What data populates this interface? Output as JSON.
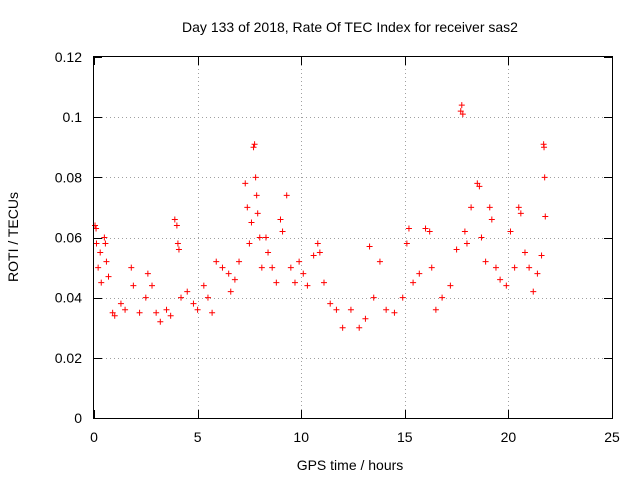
{
  "chart_data": {
    "type": "scatter",
    "title": "Day 133 of 2018, Rate Of TEC Index for receiver sas2",
    "xlabel": "GPS time / hours",
    "ylabel": "ROTI / TECUs",
    "xlim": [
      0,
      25
    ],
    "ylim": [
      0,
      0.12
    ],
    "xticks": [
      0,
      5,
      10,
      15,
      20,
      25
    ],
    "xtick_labels": [
      "0",
      "5",
      "10",
      "15",
      "20",
      "25"
    ],
    "yticks": [
      0,
      0.02,
      0.04,
      0.06,
      0.08,
      0.1,
      0.12
    ],
    "ytick_labels": [
      "0",
      "0.02",
      "0.04",
      "0.06",
      "0.08",
      "0.1",
      "0.12"
    ],
    "grid": true,
    "marker": "+",
    "color": "#ff0000",
    "series": [
      {
        "points": [
          [
            0.05,
            0.064
          ],
          [
            0.1,
            0.063
          ],
          [
            0.12,
            0.058
          ],
          [
            0.2,
            0.05
          ],
          [
            0.3,
            0.055
          ],
          [
            0.35,
            0.045
          ],
          [
            0.5,
            0.06
          ],
          [
            0.55,
            0.058
          ],
          [
            0.6,
            0.052
          ],
          [
            0.7,
            0.047
          ],
          [
            0.9,
            0.035
          ],
          [
            1.0,
            0.034
          ],
          [
            1.3,
            0.038
          ],
          [
            1.5,
            0.036
          ],
          [
            1.8,
            0.05
          ],
          [
            1.9,
            0.044
          ],
          [
            2.2,
            0.035
          ],
          [
            2.5,
            0.04
          ],
          [
            2.6,
            0.048
          ],
          [
            2.8,
            0.044
          ],
          [
            3.0,
            0.035
          ],
          [
            3.2,
            0.032
          ],
          [
            3.5,
            0.036
          ],
          [
            3.7,
            0.034
          ],
          [
            3.9,
            0.066
          ],
          [
            4.0,
            0.064
          ],
          [
            4.05,
            0.058
          ],
          [
            4.1,
            0.056
          ],
          [
            4.2,
            0.04
          ],
          [
            4.5,
            0.042
          ],
          [
            4.8,
            0.038
          ],
          [
            5.0,
            0.036
          ],
          [
            5.3,
            0.044
          ],
          [
            5.5,
            0.04
          ],
          [
            5.7,
            0.035
          ],
          [
            5.9,
            0.052
          ],
          [
            6.2,
            0.05
          ],
          [
            6.5,
            0.048
          ],
          [
            6.6,
            0.042
          ],
          [
            6.8,
            0.046
          ],
          [
            7.0,
            0.052
          ],
          [
            7.3,
            0.078
          ],
          [
            7.4,
            0.07
          ],
          [
            7.5,
            0.058
          ],
          [
            7.6,
            0.065
          ],
          [
            7.7,
            0.09
          ],
          [
            7.75,
            0.091
          ],
          [
            7.8,
            0.08
          ],
          [
            7.85,
            0.074
          ],
          [
            7.9,
            0.068
          ],
          [
            8.0,
            0.06
          ],
          [
            8.1,
            0.05
          ],
          [
            8.3,
            0.06
          ],
          [
            8.4,
            0.055
          ],
          [
            8.6,
            0.05
          ],
          [
            8.8,
            0.045
          ],
          [
            9.0,
            0.066
          ],
          [
            9.1,
            0.062
          ],
          [
            9.3,
            0.074
          ],
          [
            9.5,
            0.05
          ],
          [
            9.7,
            0.045
          ],
          [
            9.9,
            0.052
          ],
          [
            10.1,
            0.048
          ],
          [
            10.3,
            0.044
          ],
          [
            10.6,
            0.054
          ],
          [
            10.8,
            0.058
          ],
          [
            10.9,
            0.055
          ],
          [
            11.1,
            0.045
          ],
          [
            11.4,
            0.038
          ],
          [
            11.7,
            0.036
          ],
          [
            12.0,
            0.03
          ],
          [
            12.4,
            0.036
          ],
          [
            12.8,
            0.03
          ],
          [
            13.1,
            0.033
          ],
          [
            13.3,
            0.057
          ],
          [
            13.5,
            0.04
          ],
          [
            13.8,
            0.052
          ],
          [
            14.1,
            0.036
          ],
          [
            14.5,
            0.035
          ],
          [
            14.9,
            0.04
          ],
          [
            15.1,
            0.058
          ],
          [
            15.2,
            0.063
          ],
          [
            15.4,
            0.045
          ],
          [
            15.7,
            0.048
          ],
          [
            16.0,
            0.063
          ],
          [
            16.2,
            0.062
          ],
          [
            16.3,
            0.05
          ],
          [
            16.5,
            0.036
          ],
          [
            16.8,
            0.04
          ],
          [
            17.2,
            0.044
          ],
          [
            17.5,
            0.056
          ],
          [
            17.7,
            0.102
          ],
          [
            17.75,
            0.104
          ],
          [
            17.8,
            0.101
          ],
          [
            17.9,
            0.062
          ],
          [
            18.0,
            0.058
          ],
          [
            18.2,
            0.07
          ],
          [
            18.5,
            0.078
          ],
          [
            18.6,
            0.077
          ],
          [
            18.7,
            0.06
          ],
          [
            18.9,
            0.052
          ],
          [
            19.1,
            0.07
          ],
          [
            19.2,
            0.066
          ],
          [
            19.4,
            0.05
          ],
          [
            19.6,
            0.046
          ],
          [
            19.9,
            0.044
          ],
          [
            20.1,
            0.062
          ],
          [
            20.3,
            0.05
          ],
          [
            20.5,
            0.07
          ],
          [
            20.6,
            0.068
          ],
          [
            20.8,
            0.055
          ],
          [
            21.0,
            0.05
          ],
          [
            21.2,
            0.042
          ],
          [
            21.4,
            0.048
          ],
          [
            21.6,
            0.054
          ],
          [
            21.7,
            0.091
          ],
          [
            21.72,
            0.09
          ],
          [
            21.75,
            0.08
          ],
          [
            21.78,
            0.067
          ]
        ]
      }
    ]
  }
}
